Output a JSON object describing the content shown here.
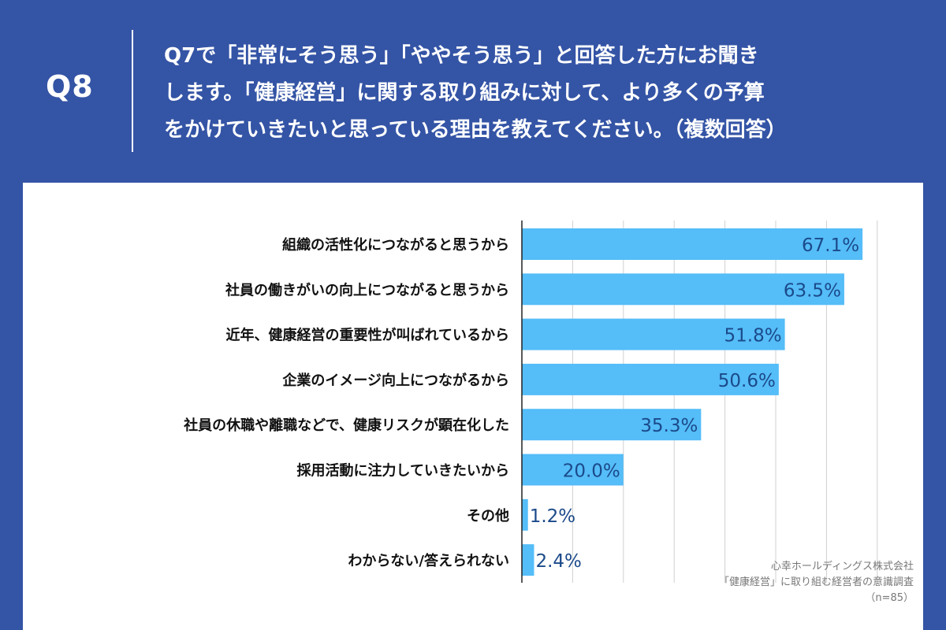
{
  "header": {
    "question_number": "Q8",
    "question_lines": [
      "Q7で「非常にそう思う」「ややそう思う」と回答した方にお聞き",
      "します。「健康経営」に関する取り組みに対して、より多くの予算",
      "をかけていきたいと思っている理由を教えてください。（複数回答）"
    ]
  },
  "chart_data": {
    "type": "bar",
    "orientation": "horizontal",
    "categories": [
      "組織の活性化につながると思うから",
      "社員の働きがいの向上につながると思うから",
      "近年、健康経営の重要性が叫ばれているから",
      "企業のイメージ向上につながるから",
      "社員の休職や離職などで、健康リスクが顕在化した",
      "採用活動に注力していきたいから",
      "その他",
      "わからない/答えられない"
    ],
    "values": [
      67.1,
      63.5,
      51.8,
      50.6,
      35.3,
      20.0,
      1.2,
      2.4
    ],
    "value_labels": [
      "67.1%",
      "63.5%",
      "51.8%",
      "50.6%",
      "35.3%",
      "20.0%",
      "1.2%",
      "2.4%"
    ],
    "xlim": [
      0,
      70
    ],
    "grid": true,
    "bar_color": "#55bdf8",
    "label_color": "#1b4a8a"
  },
  "source": {
    "company": "心幸ホールディングス株式会社",
    "survey": "「健康経営」に取り組む経営者の意識調査",
    "sample": "（n=85）"
  },
  "colors": {
    "background": "#3454a5",
    "panel": "#ffffff"
  }
}
